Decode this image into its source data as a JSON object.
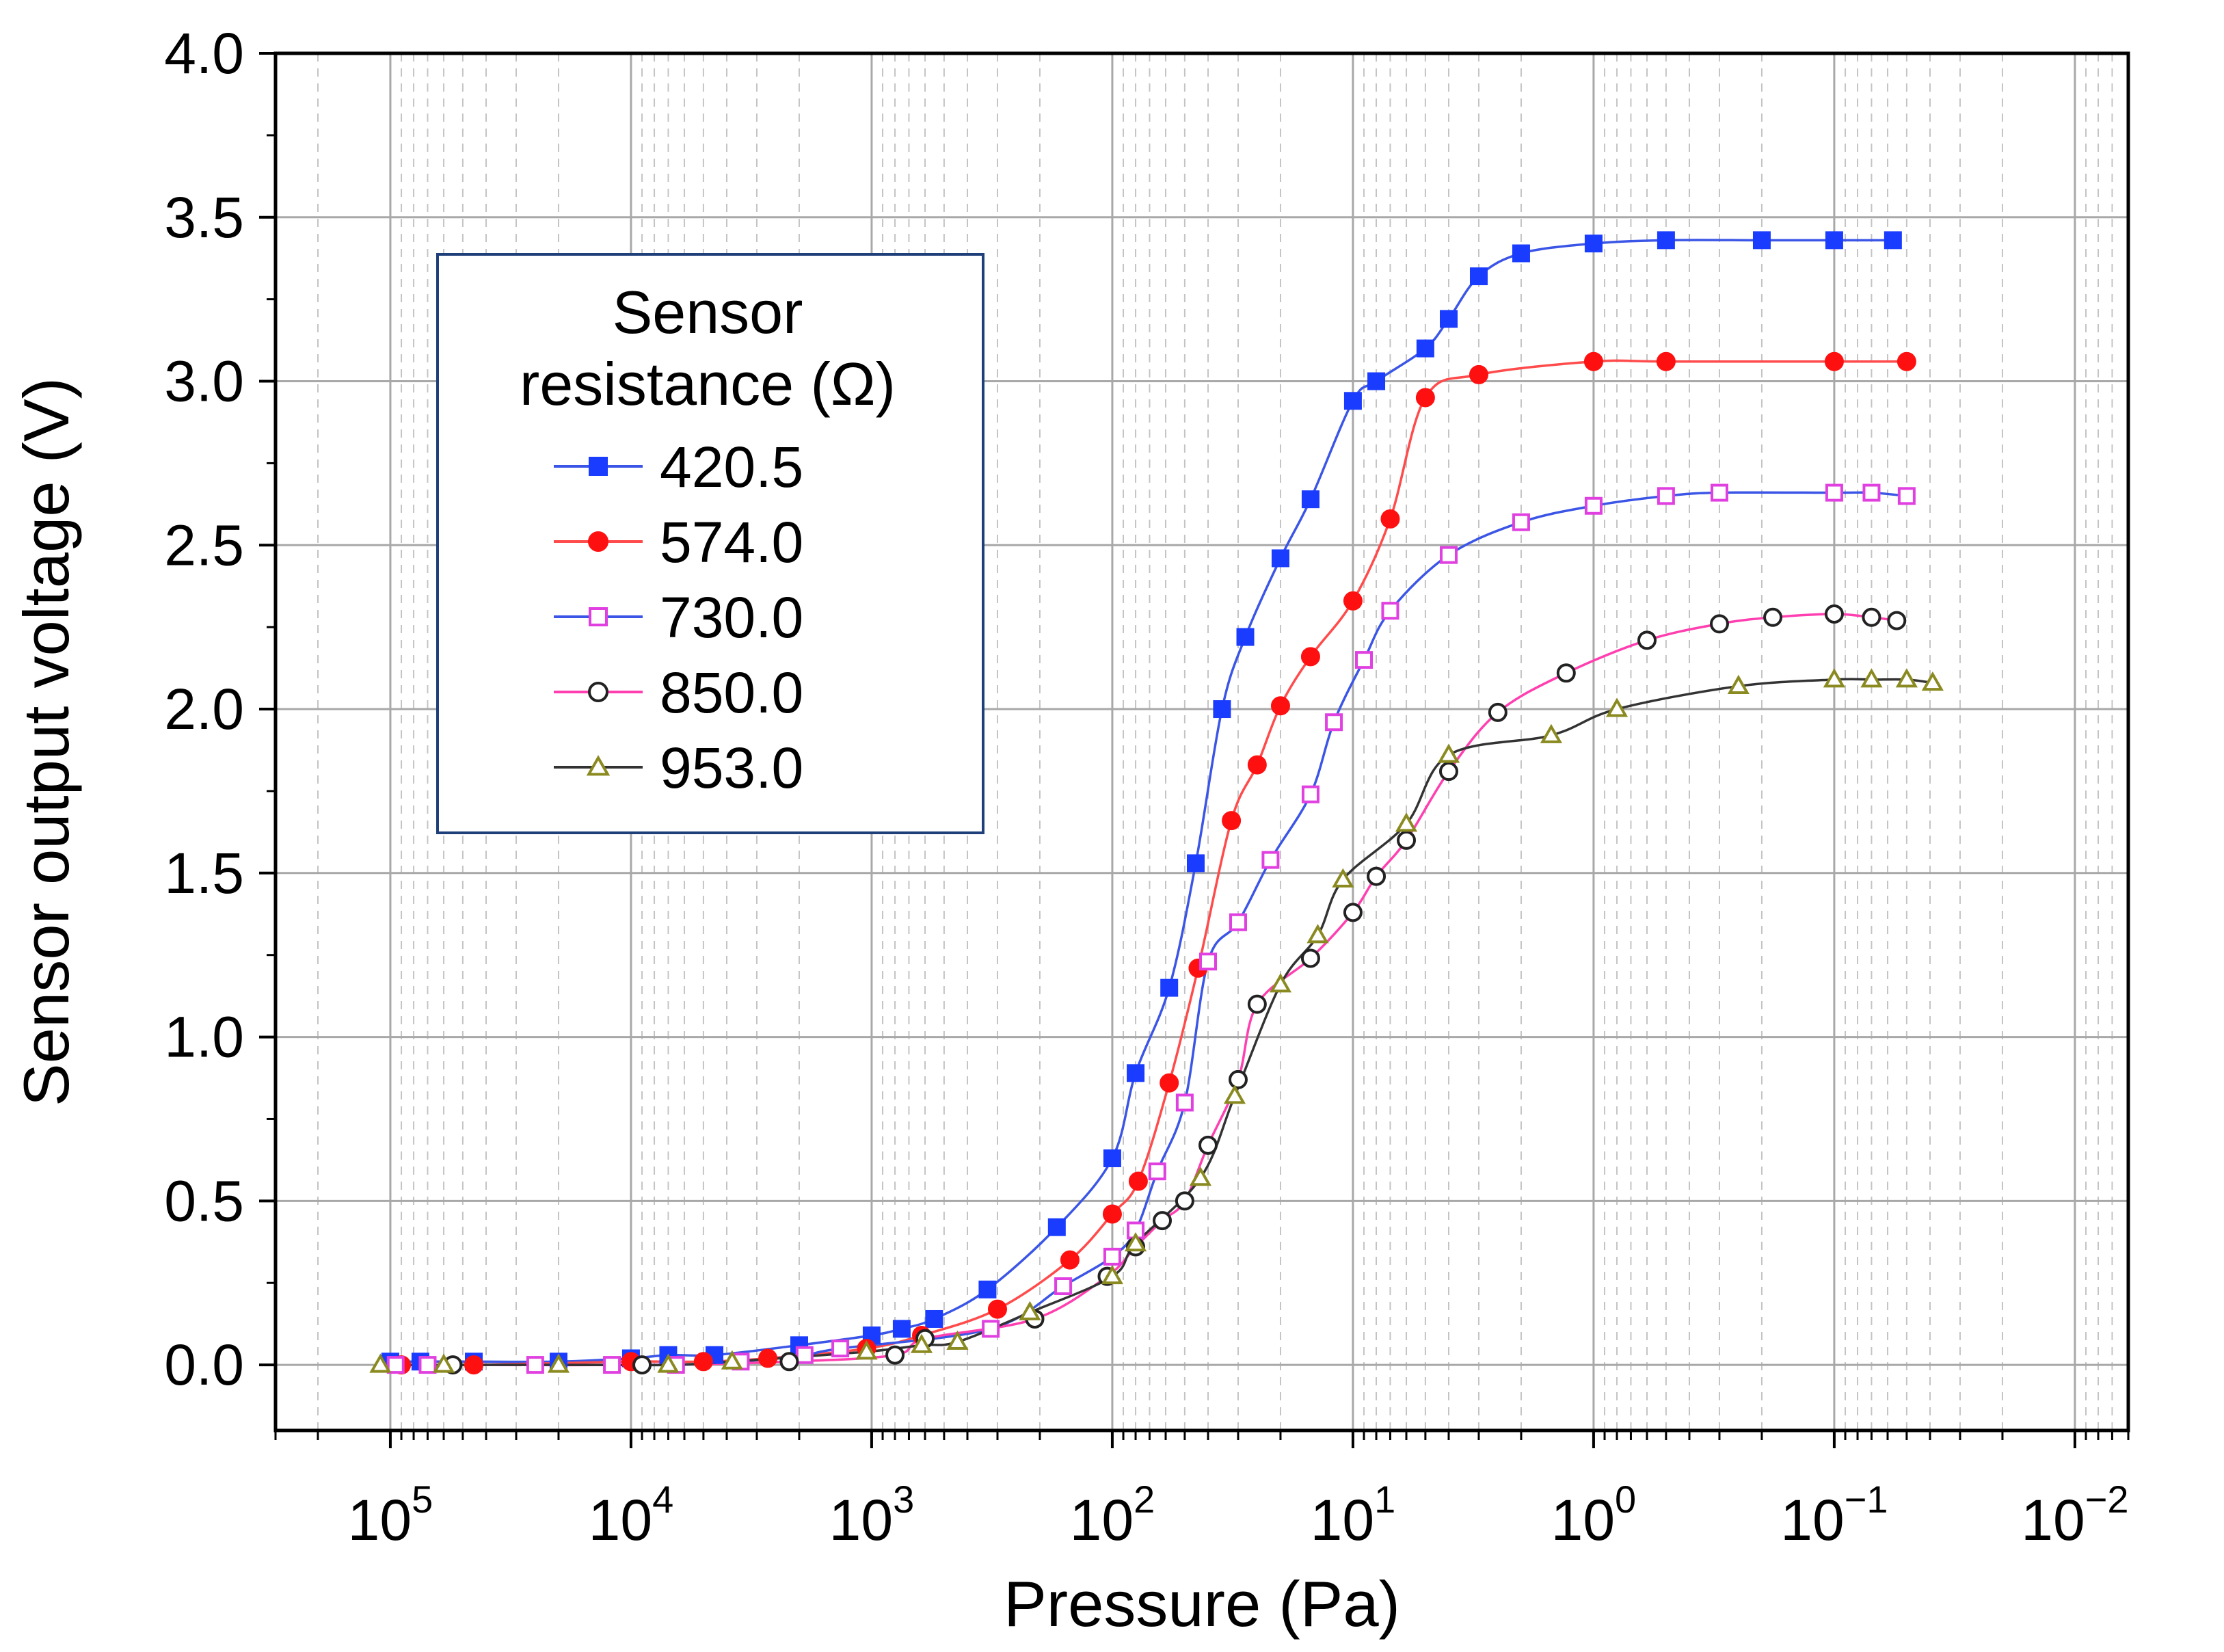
{
  "chart_data": {
    "type": "scatter",
    "title": "",
    "xlabel": "Pressure (Pa)",
    "ylabel": "Sensor output voltage (V)",
    "x_scale": "log",
    "x_reversed": true,
    "xlim": [
      300000,
      0.006
    ],
    "ylim": [
      -0.2,
      4.0
    ],
    "y_ticks": [
      "0.0",
      "0.5",
      "1.0",
      "1.5",
      "2.0",
      "2.5",
      "3.0",
      "3.5",
      "4.0"
    ],
    "x_ticks": [
      {
        "base": "10",
        "exp": "5"
      },
      {
        "base": "10",
        "exp": "4"
      },
      {
        "base": "10",
        "exp": "3"
      },
      {
        "base": "10",
        "exp": "2"
      },
      {
        "base": "10",
        "exp": "1"
      },
      {
        "base": "10",
        "exp": "0"
      },
      {
        "base": "10",
        "exp": "−1"
      },
      {
        "base": "10",
        "exp": "−2"
      }
    ],
    "grid": true,
    "legend_position": "top-left",
    "legend_title_lines": [
      "Sensor",
      "resistance (Ω)"
    ],
    "series": [
      {
        "name": "420.5",
        "marker": "square",
        "filled": true,
        "marker_color": "#1a3cff",
        "line_color": "#3b55e6",
        "x": [
          100000,
          75000,
          45000,
          20000,
          10000,
          7000,
          4500,
          2000,
          1000,
          750,
          550,
          330,
          170,
          100,
          80,
          58,
          45,
          35,
          28,
          20,
          15,
          10,
          8,
          5,
          4,
          3,
          2,
          1,
          0.5,
          0.2,
          0.1,
          0.057
        ],
        "y": [
          0.01,
          0.01,
          0.01,
          0.01,
          0.02,
          0.03,
          0.03,
          0.06,
          0.09,
          0.11,
          0.14,
          0.23,
          0.42,
          0.63,
          0.89,
          1.15,
          1.53,
          2.0,
          2.22,
          2.46,
          2.64,
          2.94,
          3.0,
          3.1,
          3.19,
          3.32,
          3.39,
          3.42,
          3.43,
          3.43,
          3.43,
          3.43
        ]
      },
      {
        "name": "574.0",
        "marker": "circle",
        "filled": true,
        "marker_color": "#ff1010",
        "line_color": "#ff4b4b",
        "x": [
          90000,
          45000,
          10000,
          5000,
          2700,
          1050,
          620,
          300,
          150,
          100,
          78,
          58,
          44,
          32,
          25,
          20,
          15,
          10,
          7,
          5,
          3,
          1,
          0.5,
          0.1,
          0.05
        ],
        "y": [
          0.0,
          0.0,
          0.01,
          0.01,
          0.02,
          0.05,
          0.09,
          0.17,
          0.32,
          0.46,
          0.56,
          0.86,
          1.21,
          1.66,
          1.83,
          2.01,
          2.16,
          2.33,
          2.58,
          2.95,
          3.02,
          3.06,
          3.06,
          3.06,
          3.06
        ]
      },
      {
        "name": "730.0",
        "marker": "square",
        "filled": false,
        "marker_color": "#e040e0",
        "line_color": "#3b55e6",
        "x": [
          95000,
          70000,
          25000,
          12000,
          6500,
          3500,
          1900,
          1350,
          320,
          160,
          100,
          80,
          65,
          50,
          40,
          30,
          22,
          15,
          12,
          9,
          7,
          4,
          2,
          1,
          0.5,
          0.3,
          0.1,
          0.07,
          0.05
        ],
        "y": [
          0.0,
          0.0,
          0.0,
          0.0,
          0.0,
          0.01,
          0.03,
          0.05,
          0.11,
          0.24,
          0.33,
          0.41,
          0.59,
          0.8,
          1.23,
          1.35,
          1.54,
          1.74,
          1.96,
          2.15,
          2.3,
          2.47,
          2.57,
          2.62,
          2.65,
          2.66,
          2.66,
          2.66,
          2.65
        ]
      },
      {
        "name": "850.0",
        "marker": "circle",
        "filled": false,
        "marker_color": "#222222",
        "line_color": "#ff3fb0",
        "x": [
          55000,
          9000,
          2200,
          800,
          600,
          210,
          105,
          80,
          62,
          50,
          40,
          30,
          25,
          15,
          10,
          8,
          6,
          4,
          2.5,
          1.3,
          0.6,
          0.3,
          0.18,
          0.1,
          0.07,
          0.055
        ],
        "y": [
          0.0,
          0.0,
          0.01,
          0.03,
          0.08,
          0.14,
          0.27,
          0.36,
          0.44,
          0.5,
          0.67,
          0.87,
          1.1,
          1.24,
          1.38,
          1.49,
          1.6,
          1.81,
          1.99,
          2.11,
          2.21,
          2.26,
          2.28,
          2.29,
          2.28,
          2.27
        ]
      },
      {
        "name": "953.0",
        "marker": "triangle",
        "filled": false,
        "marker_color": "#8a8a20",
        "line_color": "#333333",
        "x": [
          110000,
          60000,
          20000,
          7000,
          3800,
          1050,
          620,
          440,
          220,
          100,
          80,
          43,
          31,
          20,
          14,
          11,
          6,
          4,
          1.5,
          0.8,
          0.25,
          0.1,
          0.07,
          0.05,
          0.039
        ],
        "y": [
          0.0,
          0.0,
          0.0,
          0.0,
          0.01,
          0.04,
          0.06,
          0.07,
          0.16,
          0.27,
          0.37,
          0.57,
          0.82,
          1.16,
          1.31,
          1.48,
          1.65,
          1.86,
          1.92,
          2.0,
          2.07,
          2.09,
          2.09,
          2.09,
          2.08
        ]
      }
    ]
  }
}
